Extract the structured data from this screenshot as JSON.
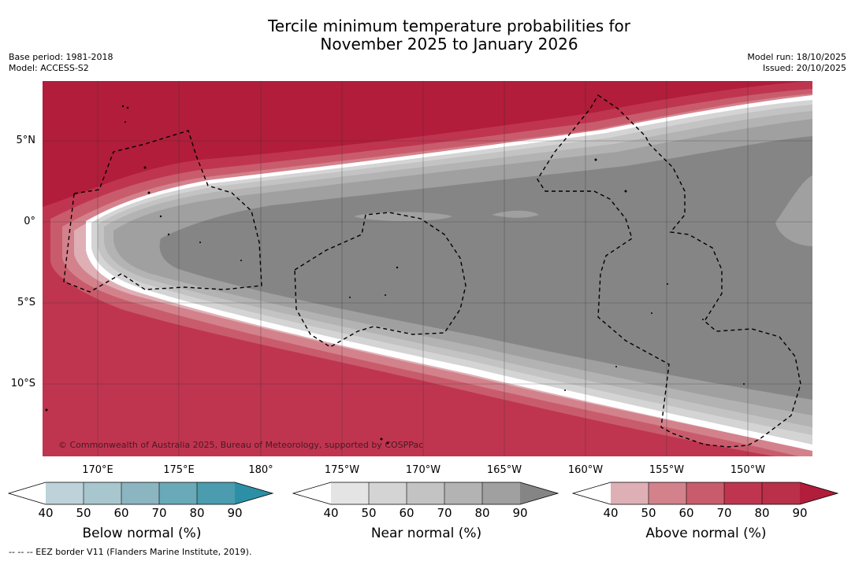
{
  "title": {
    "line1": "Tercile minimum temperature probabilities for",
    "line2": "November 2025 to January 2026"
  },
  "meta_left": {
    "base_period": "Base period: 1981-2018",
    "model": "Model: ACCESS-S2"
  },
  "meta_right": {
    "model_run": "Model run: 18/10/2025",
    "issued": "Issued: 20/10/2025"
  },
  "map": {
    "lat_labels": [
      "5°N",
      "0°",
      "5°S",
      "10°S"
    ],
    "lon_labels": [
      "170°E",
      "175°E",
      "180°",
      "175°W",
      "170°W",
      "165°W",
      "160°W",
      "155°W",
      "150°W"
    ],
    "copyright": "© Commonwealth of Australia 2025, Bureau of Meteorology, supported by COSPPac",
    "colors": {
      "above_90": "#b11d3a",
      "above_80": "#bf3550",
      "above_70": "#c95c6c",
      "above_60": "#d3828c",
      "above_50": "#deb0b6",
      "near_50": "#d4d4d4",
      "near_60": "#c3c3c3",
      "near_70": "#b3b3b3",
      "near_80": "#a0a0a0",
      "near_90": "#858585"
    }
  },
  "colorbars": [
    {
      "label": "Below normal (%)",
      "ticks": [
        "40",
        "50",
        "60",
        "70",
        "80",
        "90"
      ],
      "colors": [
        "#ffffff",
        "#bdd2d9",
        "#a8c6cd",
        "#8ab5c1",
        "#6aa9b7",
        "#4a9cae",
        "#2c8fa5"
      ]
    },
    {
      "label": "Near normal (%)",
      "ticks": [
        "40",
        "50",
        "60",
        "70",
        "80",
        "90"
      ],
      "colors": [
        "#ffffff",
        "#e4e4e4",
        "#d4d4d4",
        "#c3c3c3",
        "#b3b3b3",
        "#a0a0a0",
        "#858585"
      ]
    },
    {
      "label": "Above normal (%)",
      "ticks": [
        "40",
        "50",
        "60",
        "70",
        "80",
        "90"
      ],
      "colors": [
        "#ffffff",
        "#deb0b6",
        "#d3828c",
        "#c95c6c",
        "#bf3550",
        "#b93048",
        "#b11d3a"
      ]
    }
  ],
  "footnote": "--  --  -- EEZ border V11 (Flanders Marine Institute, 2019)."
}
